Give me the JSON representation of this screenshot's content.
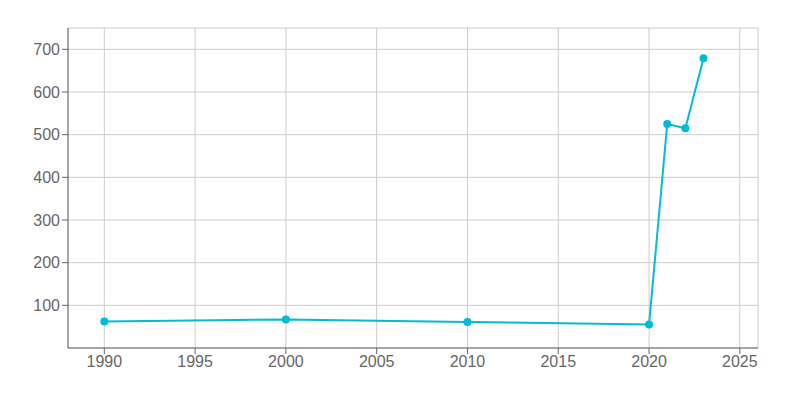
{
  "chart_data": {
    "type": "line",
    "x": [
      1990,
      2000,
      2010,
      2020,
      2021,
      2022,
      2023
    ],
    "values": [
      62,
      67,
      61,
      55,
      525,
      515,
      679
    ],
    "color": "#00BCD4",
    "marker": "circle",
    "xlim": [
      1988,
      2026
    ],
    "ylim": [
      0,
      750
    ],
    "xticks": [
      1990,
      1995,
      2000,
      2005,
      2010,
      2015,
      2020,
      2025
    ],
    "yticks": [
      100,
      200,
      300,
      400,
      500,
      600,
      700
    ],
    "grid": true
  }
}
